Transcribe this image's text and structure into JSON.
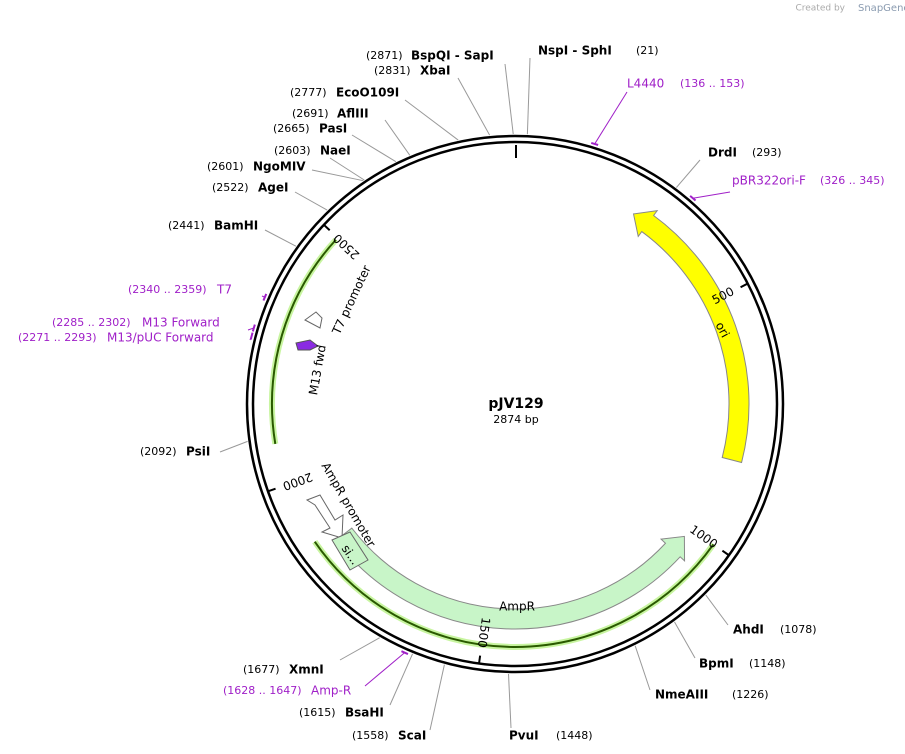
{
  "header": {
    "credit": "Created by",
    "brand": "SnapGene"
  },
  "plasmid": {
    "name": "pJV129",
    "size": "2874 bp"
  },
  "sites": [
    {
      "name": "BspQI  - SapI",
      "position": "(2871)"
    },
    {
      "name": "XbaI",
      "position": "(2831)"
    },
    {
      "name": "EcoO109I",
      "position": "(2777)"
    },
    {
      "name": "AflIII",
      "position": "(2691)"
    },
    {
      "name": "PasI",
      "position": "(2665)"
    },
    {
      "name": "NaeI",
      "position": "(2603)"
    },
    {
      "name": "NgoMIV",
      "position": "(2601)"
    },
    {
      "name": "AgeI",
      "position": "(2522)"
    },
    {
      "name": "BamHI",
      "position": "(2441)"
    },
    {
      "name": "PsiI",
      "position": "(2092)"
    },
    {
      "name": "XmnI",
      "position": "(1677)"
    },
    {
      "name": "BsaHI",
      "position": "(1615)"
    },
    {
      "name": "ScaI",
      "position": "(1558)"
    },
    {
      "name": "NspI  - SphI",
      "position": "(21)"
    },
    {
      "name": "DrdI",
      "position": "(293)"
    },
    {
      "name": "AhdI",
      "position": "(1078)"
    },
    {
      "name": "BpmI",
      "position": "(1148)"
    },
    {
      "name": "NmeAIII",
      "position": "(1226)"
    },
    {
      "name": "PvuI",
      "position": "(1448)"
    }
  ],
  "primers": [
    {
      "name": "L4440",
      "range": "(136 .. 153)"
    },
    {
      "name": "pBR322ori-F",
      "range": "(326 .. 345)"
    },
    {
      "name": "T7",
      "range": "(2340 .. 2359)"
    },
    {
      "name": "M13 Forward",
      "range": "(2285 .. 2302)"
    },
    {
      "name": "M13/pUC Forward",
      "range": "(2271 .. 2293)"
    },
    {
      "name": "Amp-R",
      "range": "(1628 .. 1647)"
    }
  ],
  "features": [
    {
      "name": "ori"
    },
    {
      "name": "AmpR"
    },
    {
      "name": "AmpR promoter"
    },
    {
      "name": "T7 promoter"
    },
    {
      "name": "M13 fwd"
    },
    {
      "name": "si..."
    }
  ],
  "ticks": [
    "500",
    "1000",
    "1500",
    "2000",
    "2500"
  ]
}
